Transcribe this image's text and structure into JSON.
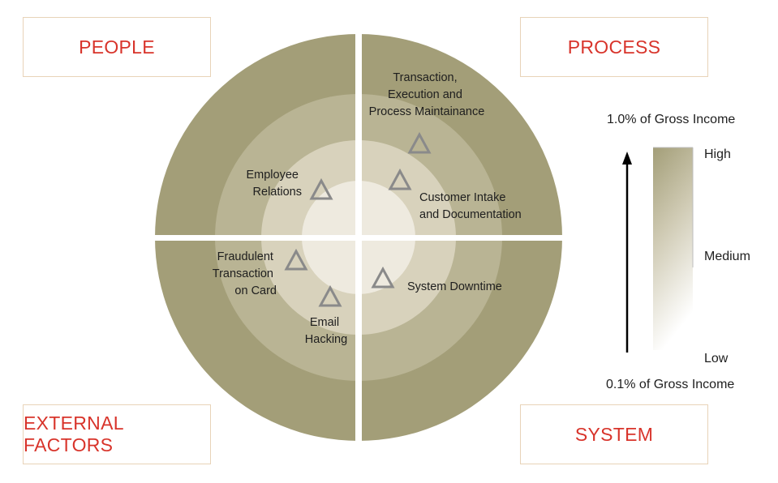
{
  "quadrants": {
    "people": "PEOPLE",
    "process": "PROCESS",
    "external": "EXTERNAL FACTORS",
    "system": "SYSTEM"
  },
  "risks": [
    {
      "lines": [
        "Transaction,",
        "Execution and",
        "Process Maintainance"
      ]
    },
    {
      "lines": [
        "Customer Intake",
        "and Documentation"
      ]
    },
    {
      "lines": [
        "Employee",
        "Relations"
      ]
    },
    {
      "lines": [
        "Fraudulent",
        "Transaction",
        "on Card"
      ]
    },
    {
      "lines": [
        "Email",
        "Hacking"
      ]
    },
    {
      "lines": [
        "System Downtime"
      ]
    }
  ],
  "legend": {
    "top": "1.0% of Gross Income",
    "bottom": "0.1% of Gross Income",
    "high": "High",
    "medium": "Medium",
    "low": "Low"
  },
  "colors": {
    "ring_outer": "#a39e78",
    "ring_2": "#b9b494",
    "ring_3": "#d8d2bc",
    "ring_inner": "#eeeadf",
    "quadrant_text": "#d8342b",
    "marker": "#8a8a8a"
  }
}
